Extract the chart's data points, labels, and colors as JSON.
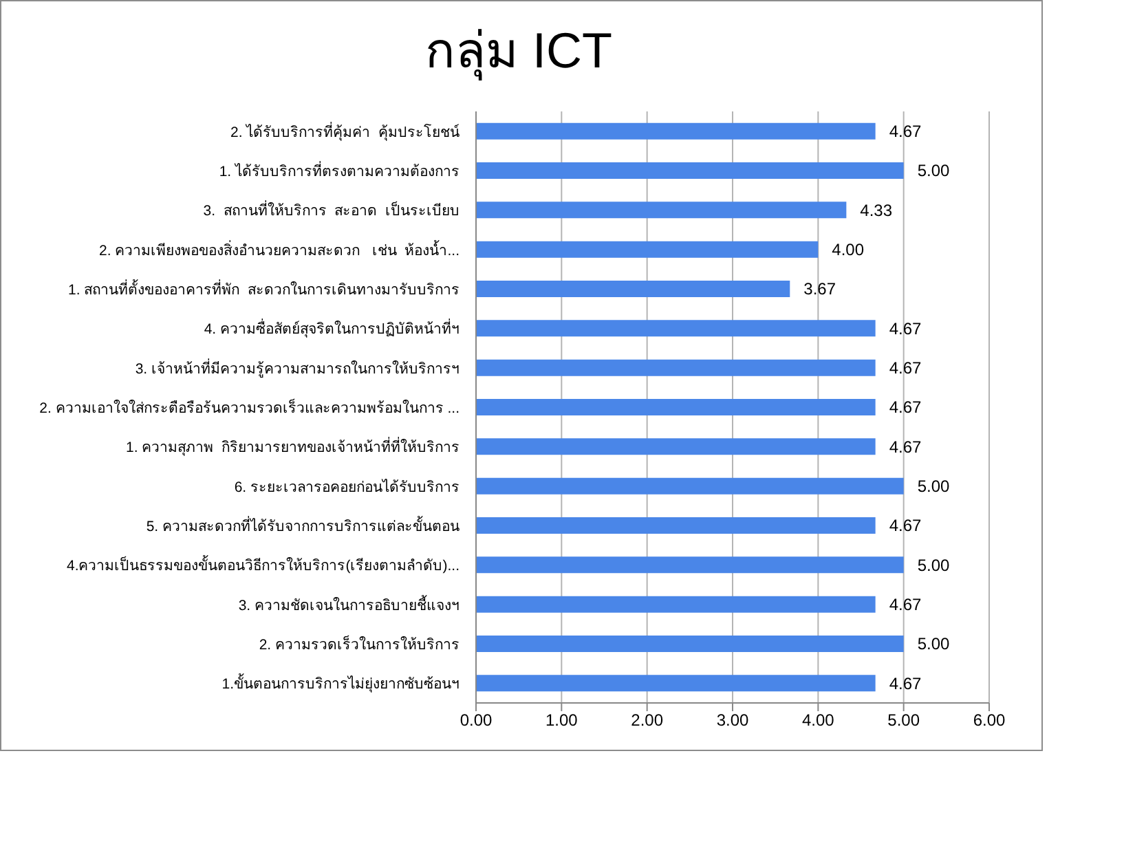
{
  "chart_data": {
    "type": "bar",
    "orientation": "horizontal",
    "title": "กลุ่ม ICT",
    "categories": [
      "2. ได้รับบริการที่คุ้มค่า  คุ้มประโยชน์",
      "1. ได้รับบริการที่ตรงตามความต้องการ",
      "3.  สถานที่ให้บริการ  สะอาด  เป็นระเบียบ",
      "2. ความเพียงพอของสิ่งอำนวยความสะดวก   เช่น  ห้องน้ำ...",
      "1. สถานที่ตั้งของอาคารที่พัก  สะดวกในการเดินทางมารับบริการ",
      "4. ความซื่อสัตย์สุจริตในการปฏิบัติหน้าที่ฯ",
      "3. เจ้าหน้าที่มีความรู้ความสามารถในการให้บริการฯ",
      "2. ความเอาใจใส่กระตือรือร้นความรวดเร็วและความพร้อมในการ ...",
      "1. ความสุภาพ  กิริยามารยาทของเจ้าหน้าที่ที่ให้บริการ",
      "6. ระยะเวลารอคอยก่อนได้รับบริการ",
      "5. ความสะดวกที่ได้รับจากการบริการแต่ละขั้นตอน",
      "4.ความเป็นธรรมของขั้นตอนวิธีการให้บริการ(เรียงตามลำดับ)...",
      "3. ความชัดเจนในการอธิบายชี้แจงฯ",
      "2. ความรวดเร็วในการให้บริการ",
      "1.ขั้นตอนการบริการไม่ยุ่งยากซับซ้อนฯ"
    ],
    "values": [
      4.67,
      5.0,
      4.33,
      4.0,
      3.67,
      4.67,
      4.67,
      4.67,
      4.67,
      5.0,
      4.67,
      5.0,
      4.67,
      5.0,
      4.67
    ],
    "value_labels": [
      "4.67",
      "5.00",
      "4.33",
      "4.00",
      "3.67",
      "4.67",
      "4.67",
      "4.67",
      "4.67",
      "5.00",
      "4.67",
      "5.00",
      "4.67",
      "5.00",
      "4.67"
    ],
    "color": "#4a86e8",
    "xlim": [
      0,
      6
    ],
    "xticks": [
      {
        "value": 0,
        "label": "0.00"
      },
      {
        "value": 1,
        "label": "1.00"
      },
      {
        "value": 2,
        "label": "2.00"
      },
      {
        "value": 3,
        "label": "3.00"
      },
      {
        "value": 4,
        "label": "4.00"
      },
      {
        "value": 5,
        "label": "5.00"
      },
      {
        "value": 6,
        "label": "6.00"
      }
    ],
    "grid": "x"
  }
}
